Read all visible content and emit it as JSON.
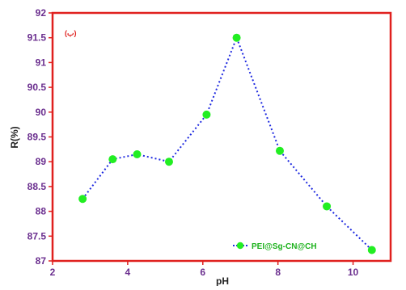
{
  "chart_data": {
    "type": "line",
    "panel_label": "(ب)",
    "xlabel": "pH",
    "ylabel": "R(%)",
    "xlim": [
      2,
      11
    ],
    "ylim": [
      87,
      92
    ],
    "x_ticks": [
      2,
      4,
      6,
      8,
      10
    ],
    "y_ticks": [
      87,
      87.5,
      88,
      88.5,
      89,
      89.5,
      90,
      90.5,
      91,
      91.5,
      92
    ],
    "x_tick_labels": [
      "2",
      "4",
      "6",
      "8",
      "10"
    ],
    "y_tick_labels": [
      "87",
      "87.5",
      "88",
      "88.5",
      "89",
      "89.5",
      "90",
      "90.5",
      "91",
      "91.5",
      "92"
    ],
    "legend_position": "bottom-right",
    "series": [
      {
        "name": "PEI@Sg-CN@CH",
        "line_color": "#1f2ae0",
        "marker_color": "#22ee22",
        "x": [
          2.8,
          3.6,
          4.25,
          5.1,
          6.1,
          6.9,
          8.05,
          9.3,
          10.5
        ],
        "y": [
          88.25,
          89.05,
          89.15,
          89.0,
          89.95,
          91.5,
          89.22,
          88.1,
          87.22
        ]
      }
    ]
  }
}
